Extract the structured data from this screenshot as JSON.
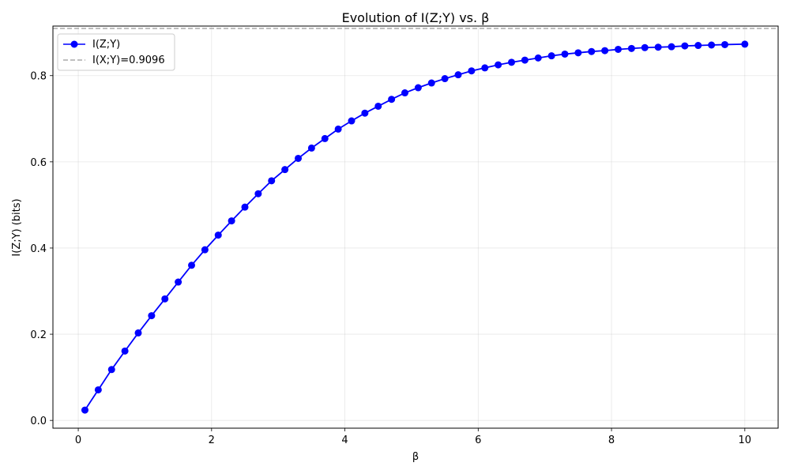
{
  "chart_data": {
    "type": "line",
    "title": "Evolution of I(Z;Y) vs. β",
    "xlabel": "β",
    "ylabel": "I(Z;Y) (bits)",
    "xlim": [
      -0.38,
      10.5
    ],
    "ylim": [
      -0.018,
      0.915
    ],
    "xticks": [
      0,
      2,
      4,
      6,
      8,
      10
    ],
    "yticks": [
      0.0,
      0.2,
      0.4,
      0.6,
      0.8
    ],
    "xtick_labels": [
      "0",
      "2",
      "4",
      "6",
      "8",
      "10"
    ],
    "ytick_labels": [
      "0.0",
      "0.2",
      "0.4",
      "0.6",
      "0.8"
    ],
    "grid": true,
    "legend_position": "top-left",
    "series": [
      {
        "name": "I(Z;Y)",
        "color": "#0000ff",
        "style": "line-with-circle-markers",
        "x": [
          0.1,
          0.3,
          0.5,
          0.7,
          0.9,
          1.1,
          1.3,
          1.5,
          1.7,
          1.9,
          2.1,
          2.3,
          2.5,
          2.7,
          2.9,
          3.1,
          3.3,
          3.5,
          3.7,
          3.9,
          4.1,
          4.3,
          4.5,
          4.7,
          4.9,
          5.1,
          5.3,
          5.5,
          5.7,
          5.9,
          6.1,
          6.3,
          6.5,
          6.7,
          6.9,
          7.1,
          7.3,
          7.5,
          7.7,
          7.9,
          8.1,
          8.3,
          8.5,
          8.7,
          8.9,
          9.1,
          9.3,
          9.5,
          9.7,
          10.0
        ],
        "y": [
          0.024,
          0.071,
          0.118,
          0.161,
          0.203,
          0.243,
          0.282,
          0.321,
          0.36,
          0.396,
          0.43,
          0.463,
          0.495,
          0.526,
          0.556,
          0.582,
          0.608,
          0.632,
          0.654,
          0.676,
          0.695,
          0.713,
          0.729,
          0.745,
          0.76,
          0.772,
          0.783,
          0.793,
          0.802,
          0.811,
          0.818,
          0.825,
          0.831,
          0.836,
          0.841,
          0.846,
          0.85,
          0.853,
          0.856,
          0.858,
          0.861,
          0.863,
          0.865,
          0.866,
          0.867,
          0.869,
          0.87,
          0.871,
          0.872,
          0.873
        ]
      },
      {
        "name": "I(X;Y)=0.9096",
        "color": "#aaaaaa",
        "style": "dashed-horizontal",
        "y_const": 0.9096
      }
    ]
  }
}
